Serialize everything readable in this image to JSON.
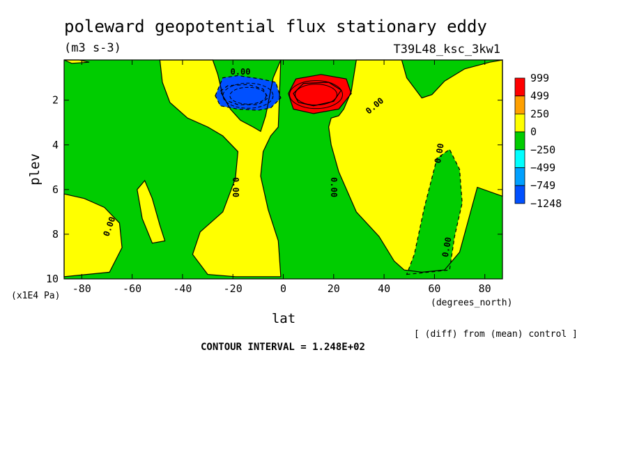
{
  "chart_data": {
    "type": "heatmap",
    "title": "poleward geopotential flux stationary eddy",
    "units": "(m3 s-3)",
    "run_label": "T39L48_ksc_3kw1",
    "xlabel": "lat",
    "x_units": "(degrees_north)",
    "ylabel": "plev",
    "y_units": "(x1E4 Pa)",
    "xlim": [
      -87,
      87
    ],
    "ylim": [
      10,
      0.2
    ],
    "x_ticks": [
      -80,
      -60,
      -40,
      -20,
      0,
      20,
      40,
      60,
      80
    ],
    "x_tick_labels": [
      "-80",
      "-60",
      "-40",
      "-20",
      "0",
      "20",
      "40",
      "60",
      "80"
    ],
    "y_ticks": [
      2,
      4,
      6,
      8,
      10
    ],
    "y_tick_labels": [
      "2",
      "4",
      "6",
      "8",
      "10"
    ],
    "note": "[ (diff) from (mean) control ]",
    "contour_interval": "CONTOUR INTERVAL = 1.248E+02",
    "contour_labels": [
      "0.00",
      "0.00",
      "0.00",
      "0.00",
      "0.00",
      "0.00",
      "0.00"
    ],
    "legend": {
      "labels": [
        "999",
        "499",
        "250",
        "0",
        "−250",
        "−499",
        "−749",
        "−1248"
      ],
      "colors": [
        "#ff0000",
        "#ffa000",
        "#ffff00",
        "#00cc00",
        "#00ffff",
        "#00a0ff",
        "#0050ff"
      ]
    },
    "regions": [
      {
        "name": "background",
        "sign": "negative",
        "value_range": [
          -250,
          0
        ],
        "polygon": [
          [
            -87,
            10
          ],
          [
            87,
            10
          ],
          [
            87,
            0.2
          ],
          [
            -87,
            0.2
          ]
        ]
      },
      {
        "name": "nh-midlat-positive",
        "sign": "positive",
        "value_range": [
          0,
          250
        ],
        "polygon": [
          [
            29,
            0.2
          ],
          [
            47,
            0.2
          ],
          [
            49,
            1.0
          ],
          [
            55,
            1.9
          ],
          [
            59,
            1.75
          ],
          [
            64,
            1.15
          ],
          [
            72,
            0.6
          ],
          [
            82,
            0.3
          ],
          [
            87,
            0.2
          ],
          [
            87,
            6.3
          ],
          [
            77,
            5.9
          ],
          [
            70,
            8.8
          ],
          [
            64,
            9.6
          ],
          [
            55,
            9.7
          ],
          [
            48,
            9.6
          ],
          [
            44,
            9.2
          ],
          [
            38,
            8.1
          ],
          [
            29,
            7.0
          ],
          [
            22,
            5.2
          ],
          [
            19,
            4.0
          ],
          [
            18,
            3.2
          ],
          [
            19,
            2.8
          ],
          [
            22,
            2.7
          ],
          [
            24,
            2.4
          ],
          [
            27,
            1.6
          ],
          [
            29,
            0.2
          ]
        ]
      },
      {
        "name": "nh-subtropical-negative",
        "sign": "negative",
        "value_range": [
          -250,
          0
        ],
        "polygon": [
          [
            49,
            9.8
          ],
          [
            66,
            9.6
          ],
          [
            68,
            8.1
          ],
          [
            71,
            6.6
          ],
          [
            70,
            5.1
          ],
          [
            66,
            4.2
          ],
          [
            61,
            4.6
          ],
          [
            56,
            6.8
          ],
          [
            52,
            8.9
          ]
        ]
      },
      {
        "name": "sh-subtropical-positive",
        "sign": "positive",
        "value_range": [
          0,
          250
        ],
        "polygon": [
          [
            -49,
            0.2
          ],
          [
            -28,
            0.2
          ],
          [
            -26,
            0.85
          ],
          [
            -24,
            1.8
          ],
          [
            -21,
            2.4
          ],
          [
            -17,
            2.9
          ],
          [
            -12,
            3.2
          ],
          [
            -9,
            3.4
          ],
          [
            -7,
            2.7
          ],
          [
            -4,
            1.0
          ],
          [
            -1,
            0.2
          ],
          [
            -2,
            3.2
          ],
          [
            -5,
            3.6
          ],
          [
            -8,
            4.3
          ],
          [
            -9,
            5.4
          ],
          [
            -6,
            6.9
          ],
          [
            -2,
            8.3
          ],
          [
            -1,
            9.9
          ],
          [
            -19,
            9.9
          ],
          [
            -30,
            9.8
          ],
          [
            -36,
            8.9
          ],
          [
            -33,
            7.9
          ],
          [
            -24,
            7.0
          ],
          [
            -19,
            5.5
          ],
          [
            -18,
            4.3
          ],
          [
            -24,
            3.6
          ],
          [
            -30,
            3.2
          ],
          [
            -38,
            2.8
          ],
          [
            -45,
            2.1
          ],
          [
            -48,
            1.2
          ]
        ]
      },
      {
        "name": "sh-midlat-positive",
        "sign": "positive",
        "value_range": [
          0,
          250
        ],
        "polygon": [
          [
            -87,
            6.2
          ],
          [
            -79,
            6.4
          ],
          [
            -71,
            6.8
          ],
          [
            -65,
            7.5
          ],
          [
            -64,
            8.6
          ],
          [
            -69,
            9.7
          ],
          [
            -87,
            9.9
          ]
        ]
      },
      {
        "name": "sh-lower-positive",
        "sign": "positive",
        "value_range": [
          0,
          250
        ],
        "polygon": [
          [
            -58,
            6.0
          ],
          [
            -55,
            5.6
          ],
          [
            -52,
            6.4
          ],
          [
            -49,
            7.6
          ],
          [
            -47,
            8.3
          ],
          [
            -52,
            8.4
          ],
          [
            -56,
            7.3
          ]
        ]
      },
      {
        "name": "nh-polar-strip",
        "sign": "positive",
        "value_range": [
          0,
          250
        ],
        "polygon": [
          [
            -87,
            0.2
          ],
          [
            -81,
            0.2
          ],
          [
            -77,
            0.3
          ],
          [
            -84,
            0.35
          ]
        ]
      },
      {
        "name": "sh-tropical-minimum",
        "sign": "negative",
        "value_range": [
          -1248,
          -749
        ],
        "polygon": [
          [
            -27,
            1.8
          ],
          [
            -24,
            1.0
          ],
          [
            -18,
            0.9
          ],
          [
            -9,
            1.05
          ],
          [
            -3,
            1.2
          ],
          [
            -1,
            1.9
          ],
          [
            -5,
            2.35
          ],
          [
            -10,
            2.45
          ],
          [
            -18,
            2.4
          ],
          [
            -25,
            2.25
          ]
        ]
      },
      {
        "name": "sh-tropical-core",
        "sign": "negative",
        "value_range": [
          -1248,
          -749
        ],
        "polygon": [
          [
            -25,
            1.6
          ],
          [
            -22,
            1.35
          ],
          [
            -14,
            1.3
          ],
          [
            -8,
            1.5
          ],
          [
            -6,
            1.9
          ],
          [
            -10,
            2.2
          ],
          [
            -18,
            2.2
          ],
          [
            -23,
            2.0
          ]
        ]
      },
      {
        "name": "nh-tropical-maximum",
        "sign": "positive",
        "value_range": [
          499,
          999
        ],
        "polygon": [
          [
            2,
            1.7
          ],
          [
            5,
            1.05
          ],
          [
            15,
            0.85
          ],
          [
            25,
            1.05
          ],
          [
            27,
            1.7
          ],
          [
            22,
            2.4
          ],
          [
            12,
            2.6
          ],
          [
            4,
            2.4
          ]
        ]
      },
      {
        "name": "nh-tropical-core",
        "sign": "positive",
        "value_range": [
          999,
          1248
        ],
        "polygon": [
          [
            4,
            1.7
          ],
          [
            8,
            1.25
          ],
          [
            18,
            1.2
          ],
          [
            23,
            1.55
          ],
          [
            20,
            2.05
          ],
          [
            12,
            2.25
          ],
          [
            6,
            2.1
          ]
        ]
      }
    ]
  }
}
